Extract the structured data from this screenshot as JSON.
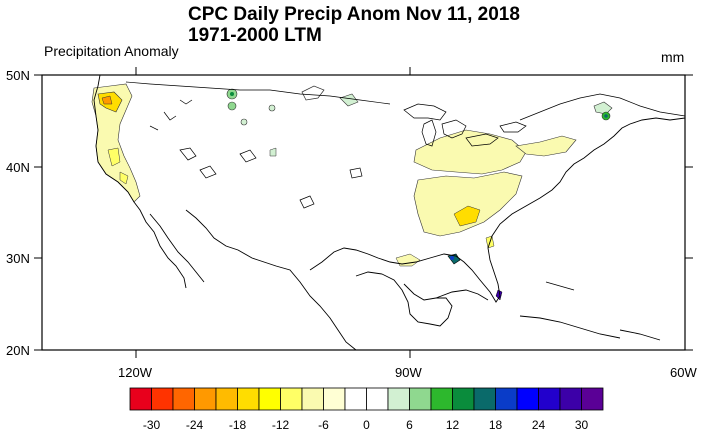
{
  "title_line1": "CPC Daily Precip Anom Nov 11, 2018",
  "title_line2": "1971-2000 LTM",
  "left_subtitle": "Precipitation Anomaly",
  "right_subtitle": "mm",
  "y_axis_labels": [
    "50N",
    "40N",
    "30N",
    "20N"
  ],
  "x_axis_labels": [
    "120W",
    "90W",
    "60W"
  ],
  "colorbar": {
    "labels": [
      "-30",
      "-24",
      "-18",
      "-12",
      "-6",
      "0",
      "6",
      "12",
      "18",
      "24",
      "30"
    ],
    "colors": [
      "#e8001c",
      "#ff3300",
      "#ff6600",
      "#ff9900",
      "#ffbb00",
      "#ffdd00",
      "#ffff00",
      "#ffff66",
      "#fafab0",
      "#ffffd4",
      "#ffffff",
      "#ffffff",
      "#d2f0d2",
      "#8fd88f",
      "#2db82d",
      "#0a8c3c",
      "#0a6a6a",
      "#0a3cc8",
      "#0000ff",
      "#2200cc",
      "#3c00a8",
      "#5a0096"
    ]
  }
}
